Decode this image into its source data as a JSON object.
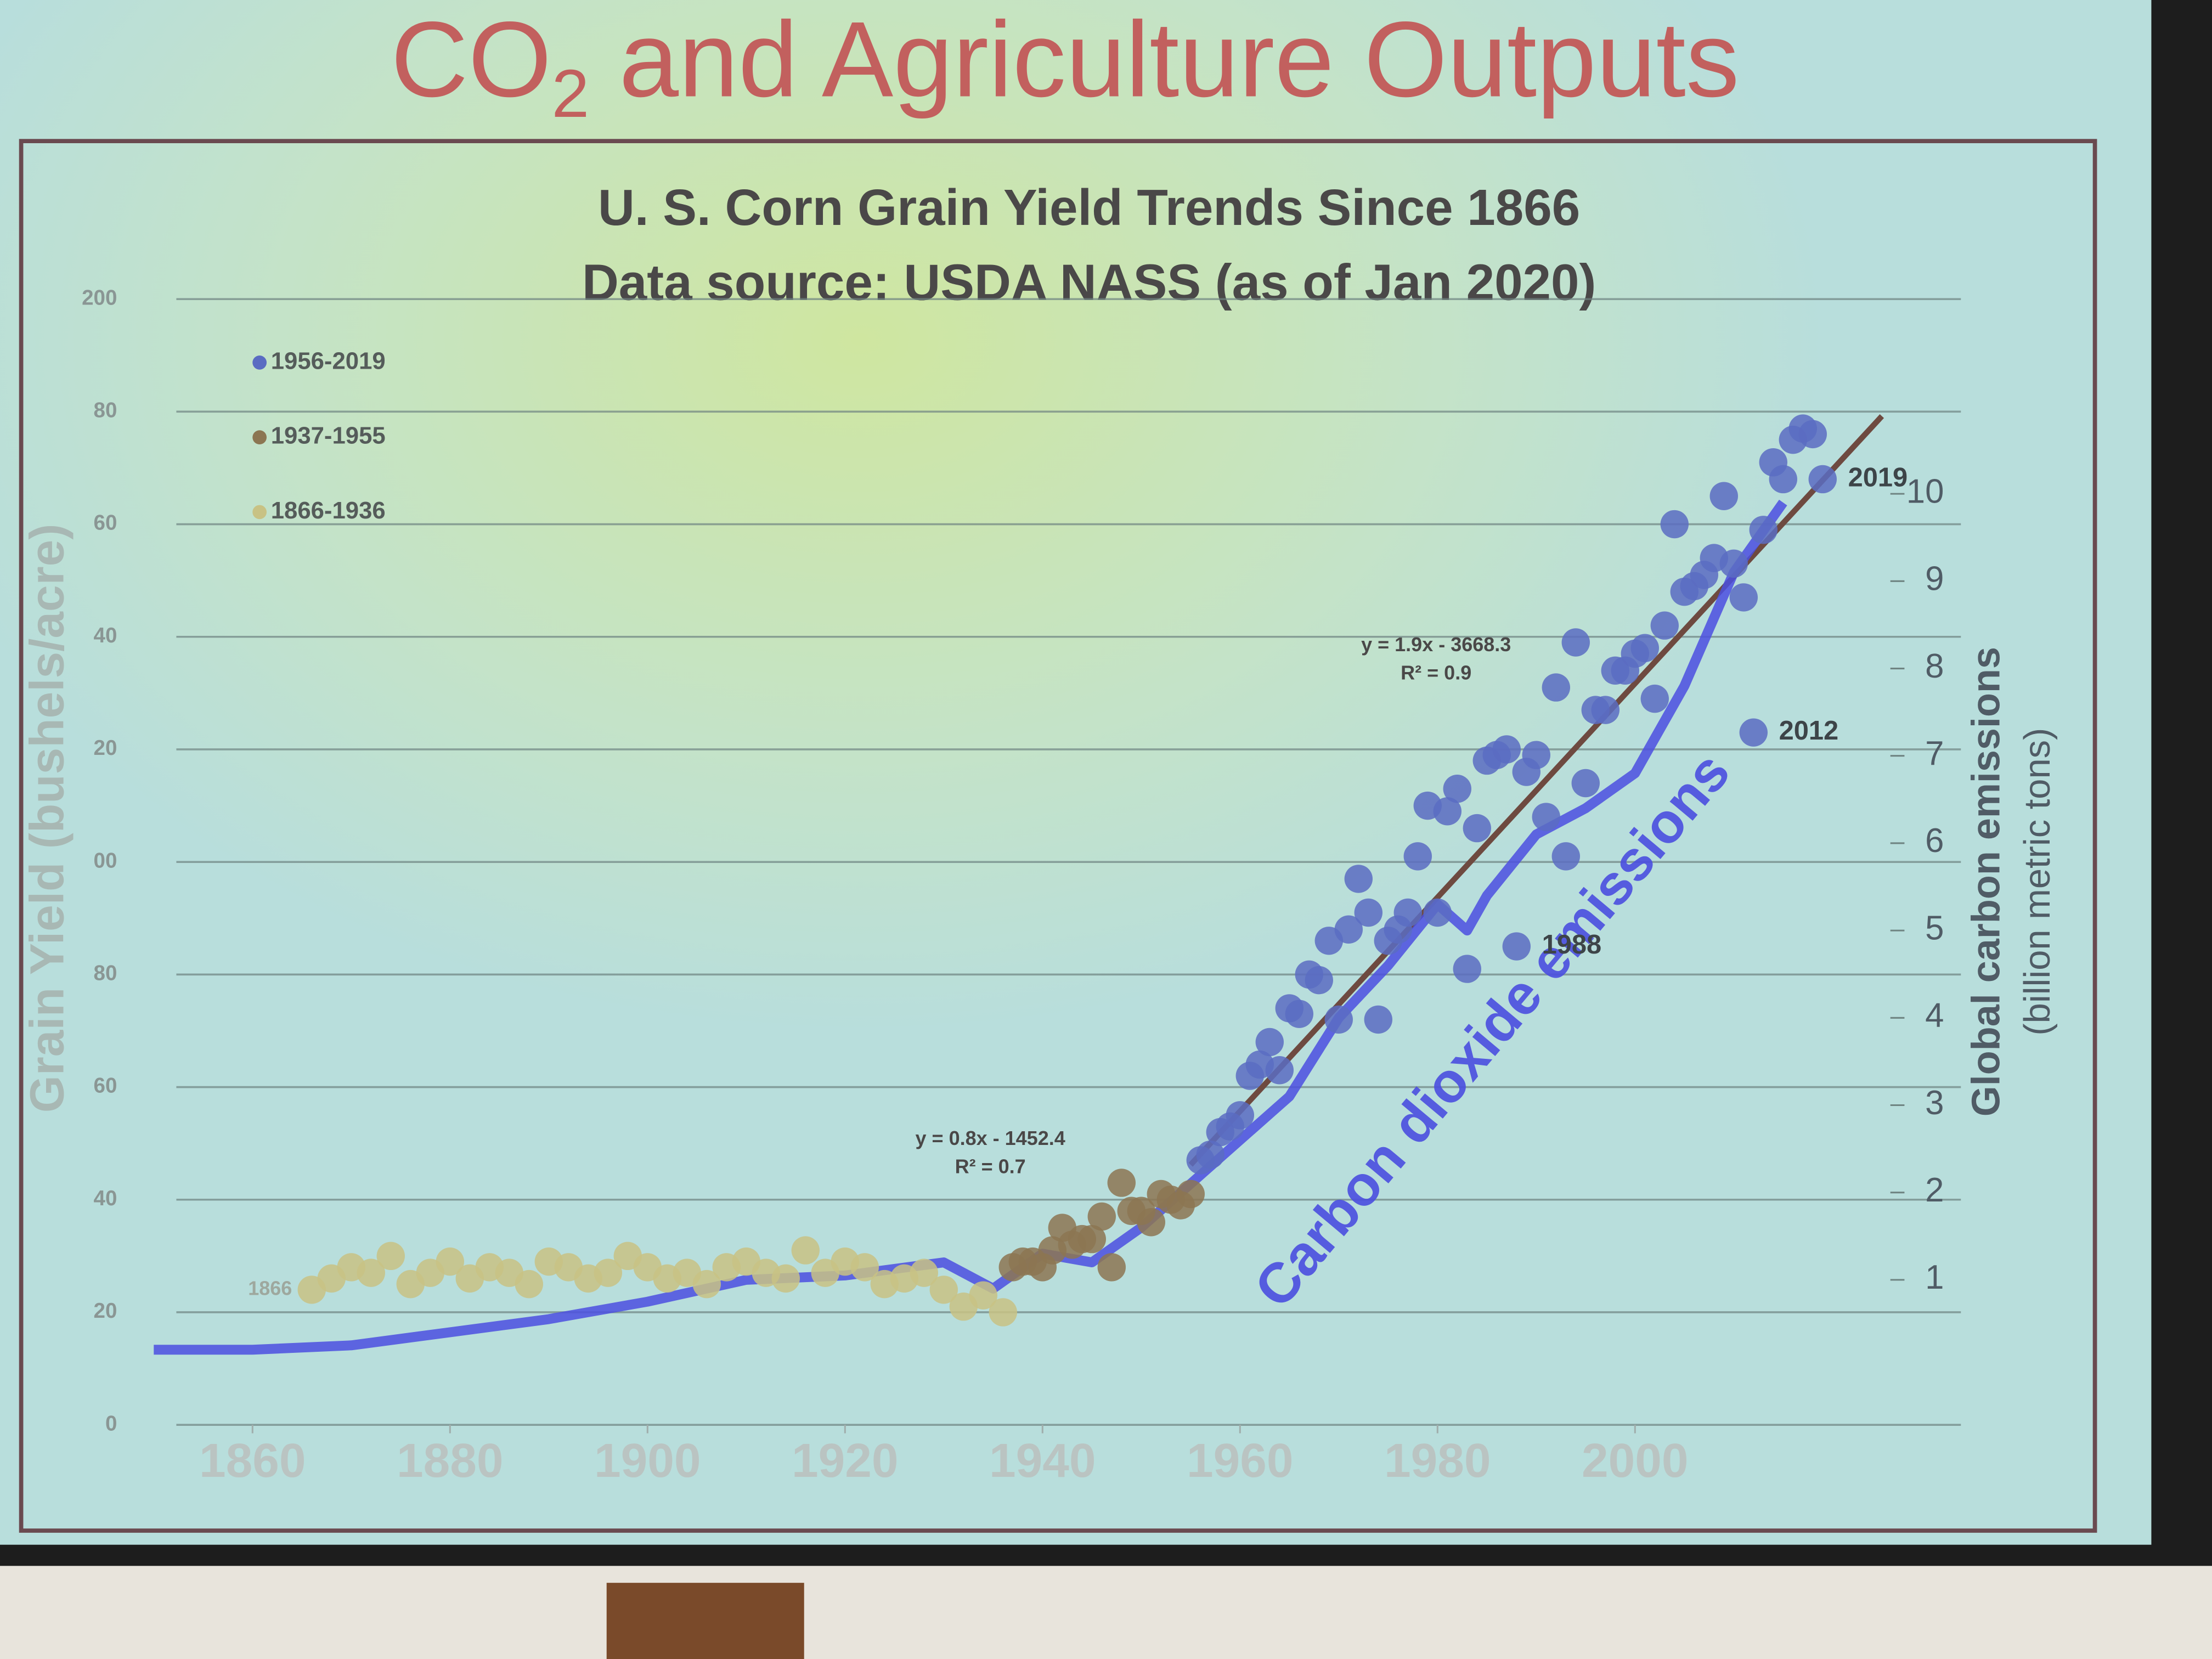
{
  "chart_data": {
    "type": "scatter",
    "slide_title": [
      "CO",
      "2",
      " and Agriculture Outputs"
    ],
    "title": [
      "U. S. Corn Grain Yield Trends Since 1866",
      "Data source: USDA NASS (as of Jan 2020)"
    ],
    "ylabel": "Grain Yield (bushels/acre)",
    "y2label": [
      "Global carbon emissions",
      "(billion metric tons)"
    ],
    "xlim": [
      1848,
      2033
    ],
    "xticks": [
      1860,
      1880,
      1900,
      1920,
      1940,
      1960,
      1980,
      2000
    ],
    "ylim": [
      0,
      200
    ],
    "yticks": [
      200,
      {
        "value": 180,
        "label": "80"
      },
      {
        "value": 160,
        "label": "60"
      },
      {
        "value": 140,
        "label": "40"
      },
      {
        "value": 120,
        "label": "20"
      },
      {
        "value": 100,
        "label": "00"
      },
      80,
      60,
      40,
      20,
      0
    ],
    "y2lim": [
      -0.66,
      12.23
    ],
    "y2ticks": [
      1,
      2,
      3,
      4,
      5,
      6,
      7,
      8,
      9,
      10
    ],
    "grid": true,
    "legend": "upper left",
    "series": [
      {
        "name": "1956-2019",
        "color": "#5a6cc2",
        "x": [
          1956,
          1957,
          1958,
          1959,
          1960,
          1961,
          1962,
          1963,
          1964,
          1965,
          1966,
          1967,
          1968,
          1969,
          1970,
          1971,
          1972,
          1973,
          1974,
          1975,
          1976,
          1977,
          1978,
          1979,
          1980,
          1981,
          1982,
          1983,
          1984,
          1985,
          1986,
          1987,
          1988,
          1989,
          1990,
          1991,
          1992,
          1993,
          1994,
          1995,
          1996,
          1997,
          1998,
          1999,
          2000,
          2001,
          2002,
          2003,
          2004,
          2005,
          2006,
          2007,
          2008,
          2009,
          2010,
          2011,
          2012,
          2013,
          2014,
          2015,
          2016,
          2017,
          2018,
          2019
        ],
        "values": [
          47,
          48,
          52,
          53,
          55,
          62,
          64,
          68,
          63,
          74,
          73,
          80,
          79,
          86,
          72,
          88,
          97,
          91,
          72,
          86,
          88,
          91,
          101,
          110,
          91,
          109,
          113,
          81,
          106,
          118,
          119,
          120,
          85,
          116,
          119,
          108,
          131,
          101,
          139,
          114,
          127,
          127,
          134,
          134,
          137,
          138,
          129,
          142,
          160,
          148,
          149,
          151,
          154,
          165,
          153,
          147,
          123,
          159,
          171,
          168,
          175,
          177,
          176,
          168
        ]
      },
      {
        "name": "1937-1955",
        "color": "#8c7652",
        "x": [
          1937,
          1938,
          1939,
          1940,
          1941,
          1942,
          1943,
          1944,
          1945,
          1946,
          1947,
          1948,
          1949,
          1950,
          1951,
          1952,
          1953,
          1954,
          1955
        ],
        "values": [
          28,
          29,
          29,
          28,
          31,
          35,
          32,
          33,
          33,
          37,
          28,
          43,
          38,
          38,
          36,
          41,
          40,
          39,
          41
        ]
      },
      {
        "name": "1866-1936",
        "color": "#c8c284",
        "x": [
          1866,
          1868,
          1870,
          1872,
          1874,
          1876,
          1878,
          1880,
          1882,
          1884,
          1886,
          1888,
          1890,
          1892,
          1894,
          1896,
          1898,
          1900,
          1902,
          1904,
          1906,
          1908,
          1910,
          1912,
          1914,
          1916,
          1918,
          1920,
          1922,
          1924,
          1926,
          1928,
          1930,
          1932,
          1934,
          1936
        ],
        "values": [
          24,
          26,
          28,
          27,
          30,
          25,
          27,
          29,
          26,
          28,
          27,
          25,
          29,
          28,
          26,
          27,
          30,
          28,
          26,
          27,
          25,
          28,
          29,
          27,
          26,
          31,
          27,
          29,
          28,
          25,
          26,
          27,
          24,
          21,
          23,
          20
        ]
      },
      {
        "name": "Carbon dioxide emissions",
        "type": "line",
        "axis": "y2",
        "color": "#4b4fe0",
        "x": [
          1850,
          1860,
          1870,
          1880,
          1890,
          1900,
          1910,
          1920,
          1930,
          1935,
          1940,
          1945,
          1950,
          1955,
          1960,
          1965,
          1970,
          1975,
          1980,
          1983,
          1985,
          1990,
          1995,
          2000,
          2005,
          2010,
          2015
        ],
        "values": [
          0.2,
          0.2,
          0.25,
          0.4,
          0.55,
          0.75,
          1.0,
          1.05,
          1.2,
          0.9,
          1.3,
          1.2,
          1.6,
          2.1,
          2.6,
          3.1,
          4.0,
          4.6,
          5.3,
          5.0,
          5.4,
          6.1,
          6.4,
          6.8,
          7.8,
          9.1,
          9.9
        ]
      }
    ],
    "trendlines": [
      {
        "label": "y = 0.8x - 1452.4",
        "r2": "R² = 0.7",
        "slope": 0.8,
        "intercept": -1452.4
      },
      {
        "label": "y = 1.9x - 3668.3",
        "r2": "R² = 0.9",
        "slope": 1.9,
        "intercept": -3668.3,
        "x": [
          1955,
          2025
        ],
        "color": "#6e4a40"
      }
    ],
    "annotations": [
      {
        "text": "1866",
        "x": 1866,
        "y": 24
      },
      {
        "text": "1988",
        "x": 1988,
        "y": 85
      },
      {
        "text": "2012",
        "x": 2012,
        "y": 123
      },
      {
        "text": "2019",
        "x": 2019,
        "y": 168
      }
    ]
  }
}
